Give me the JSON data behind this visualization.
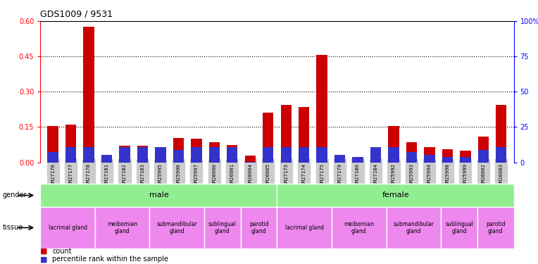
{
  "title": "GDS1009 / 9531",
  "samples": [
    "GSM27176",
    "GSM27177",
    "GSM27178",
    "GSM27181",
    "GSM27182",
    "GSM27183",
    "GSM25995",
    "GSM25996",
    "GSM25997",
    "GSM26000",
    "GSM26001",
    "GSM26004",
    "GSM26005",
    "GSM27173",
    "GSM27174",
    "GSM27175",
    "GSM27179",
    "GSM27180",
    "GSM27184",
    "GSM25992",
    "GSM25993",
    "GSM25994",
    "GSM25998",
    "GSM25999",
    "GSM26002",
    "GSM26003"
  ],
  "count_values": [
    0.155,
    0.16,
    0.575,
    0.03,
    0.07,
    0.07,
    0.055,
    0.105,
    0.1,
    0.085,
    0.075,
    0.03,
    0.21,
    0.245,
    0.235,
    0.455,
    0.03,
    0.015,
    0.04,
    0.155,
    0.085,
    0.065,
    0.055,
    0.05,
    0.11,
    0.245
  ],
  "percentile_values": [
    7.5,
    11.0,
    11.0,
    5.5,
    11.0,
    11.0,
    11.0,
    9.0,
    11.0,
    11.0,
    11.0,
    0.5,
    11.0,
    11.0,
    11.0,
    11.0,
    5.5,
    4.0,
    11.0,
    11.0,
    7.5,
    5.5,
    4.0,
    4.0,
    9.0,
    11.0
  ],
  "ylim_left": [
    0,
    0.6
  ],
  "ylim_right": [
    0,
    100
  ],
  "yticks_left": [
    0,
    0.15,
    0.3,
    0.45,
    0.6
  ],
  "yticks_right": [
    0,
    25,
    50,
    75,
    100
  ],
  "bar_color_count": "#cc0000",
  "bar_color_pct": "#3333cc",
  "gender_groups": [
    {
      "label": "male",
      "start": 0,
      "end": 13
    },
    {
      "label": "female",
      "start": 13,
      "end": 26
    }
  ],
  "tissue_groups": [
    {
      "label": "lacrimal gland",
      "start": 0,
      "end": 3
    },
    {
      "label": "meibomian\ngland",
      "start": 3,
      "end": 6
    },
    {
      "label": "submandibular\ngland",
      "start": 6,
      "end": 9
    },
    {
      "label": "sublingual\ngland",
      "start": 9,
      "end": 11
    },
    {
      "label": "parotid\ngland",
      "start": 11,
      "end": 13
    },
    {
      "label": "lacrimal gland",
      "start": 13,
      "end": 16
    },
    {
      "label": "meibomian\ngland",
      "start": 16,
      "end": 19
    },
    {
      "label": "submandibular\ngland",
      "start": 19,
      "end": 22
    },
    {
      "label": "sublingual\ngland",
      "start": 22,
      "end": 24
    },
    {
      "label": "parotid\ngland",
      "start": 24,
      "end": 26
    }
  ],
  "gender_color": "#90ee90",
  "tissue_color": "#ee88ee",
  "background_color": "#ffffff",
  "tick_bg": "#cccccc"
}
